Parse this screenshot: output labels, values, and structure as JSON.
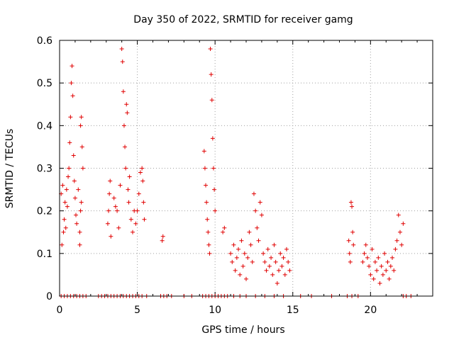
{
  "chart_data": {
    "type": "scatter",
    "title": "Day 350 of 2022, SRMTID for receiver gamg",
    "xlabel": "GPS time / hours",
    "ylabel": "SRMTID / TECUs",
    "xlim": [
      0,
      24
    ],
    "ylim": [
      0,
      0.6
    ],
    "x_ticks": [
      0,
      5,
      10,
      15,
      20
    ],
    "y_ticks": [
      0,
      0.1,
      0.2,
      0.3,
      0.4,
      0.5,
      0.6
    ],
    "x_tick_labels": [
      "0",
      "5",
      "10",
      "15",
      "20"
    ],
    "y_tick_labels": [
      "0",
      "0.1",
      "0.2",
      "0.3",
      "0.4",
      "0.5",
      "0.6"
    ],
    "grid": true,
    "marker": "+",
    "color": "#e00000",
    "series": [
      {
        "name": "SRMTID",
        "x": [
          0.1,
          0.15,
          0.2,
          0.25,
          0.3,
          0.35,
          0.4,
          0.45,
          0.5,
          0.55,
          0.6,
          0.65,
          0.7,
          0.75,
          0.8,
          0.85,
          0.9,
          0.95,
          1.0,
          1.05,
          1.1,
          1.2,
          1.3,
          1.35,
          1.4,
          1.45,
          1.5,
          1.3,
          1.35,
          1.4,
          3.1,
          3.15,
          3.2,
          3.25,
          3.3,
          3.5,
          3.6,
          3.7,
          3.8,
          3.9,
          4.0,
          4.05,
          4.1,
          4.15,
          4.2,
          4.25,
          4.3,
          4.35,
          4.4,
          4.45,
          4.5,
          4.6,
          4.7,
          4.8,
          4.9,
          5.0,
          5.1,
          5.2,
          5.3,
          5.35,
          5.4,
          5.45,
          6.6,
          6.65,
          9.3,
          9.35,
          9.4,
          9.45,
          9.5,
          9.55,
          9.6,
          9.65,
          9.7,
          9.75,
          9.8,
          9.85,
          9.9,
          9.95,
          10.0,
          10.5,
          10.6,
          11.0,
          11.1,
          11.2,
          11.3,
          11.4,
          11.5,
          11.6,
          11.7,
          11.8,
          11.9,
          12.0,
          12.1,
          12.2,
          12.3,
          12.4,
          12.5,
          12.6,
          12.7,
          12.8,
          12.9,
          13.0,
          13.1,
          13.2,
          13.3,
          13.4,
          13.5,
          13.6,
          13.7,
          13.8,
          13.9,
          14.0,
          14.1,
          14.2,
          14.3,
          14.4,
          14.5,
          14.6,
          14.7,
          14.8,
          18.6,
          18.65,
          18.7,
          18.75,
          18.8,
          18.85,
          18.9,
          19.5,
          19.6,
          19.7,
          19.8,
          19.9,
          20.0,
          20.1,
          20.2,
          20.3,
          20.4,
          20.5,
          20.6,
          20.7,
          20.8,
          20.9,
          21.0,
          21.1,
          21.2,
          21.3,
          21.4,
          21.5,
          21.6,
          21.7,
          21.8,
          21.9,
          22.0,
          22.1,
          0.1,
          0.3,
          0.5,
          0.7,
          0.9,
          1.1,
          1.3,
          1.5,
          1.7,
          2.5,
          2.7,
          2.9,
          3.1,
          3.3,
          3.5,
          3.7,
          3.9,
          4.1,
          4.3,
          4.5,
          4.7,
          4.9,
          5.1,
          5.3,
          5.6,
          6.5,
          6.7,
          6.9,
          7.2,
          8.0,
          8.5,
          9.2,
          9.4,
          9.6,
          9.8,
          10.0,
          10.2,
          10.4,
          10.6,
          10.8,
          11.2,
          11.6,
          12.0,
          12.6,
          13.2,
          13.8,
          14.4,
          15.5,
          16.2,
          17.5,
          18.5,
          18.8,
          19.2,
          22.1,
          22.3,
          22.6
        ],
        "y": [
          0.24,
          0.12,
          0.26,
          0.15,
          0.18,
          0.22,
          0.16,
          0.25,
          0.21,
          0.28,
          0.3,
          0.36,
          0.42,
          0.5,
          0.54,
          0.47,
          0.33,
          0.27,
          0.23,
          0.19,
          0.17,
          0.25,
          0.12,
          0.4,
          0.42,
          0.35,
          0.3,
          0.15,
          0.2,
          0.22,
          0.17,
          0.2,
          0.24,
          0.27,
          0.14,
          0.23,
          0.21,
          0.2,
          0.16,
          0.26,
          0.58,
          0.55,
          0.48,
          0.4,
          0.35,
          0.3,
          0.45,
          0.43,
          0.25,
          0.22,
          0.28,
          0.18,
          0.15,
          0.2,
          0.17,
          0.2,
          0.24,
          0.29,
          0.3,
          0.27,
          0.22,
          0.18,
          0.13,
          0.14,
          0.34,
          0.3,
          0.26,
          0.22,
          0.18,
          0.15,
          0.12,
          0.1,
          0.58,
          0.52,
          0.46,
          0.37,
          0.3,
          0.25,
          0.2,
          0.15,
          0.16,
          0.1,
          0.08,
          0.12,
          0.06,
          0.09,
          0.11,
          0.05,
          0.13,
          0.07,
          0.1,
          0.04,
          0.09,
          0.15,
          0.12,
          0.08,
          0.24,
          0.2,
          0.16,
          0.13,
          0.22,
          0.19,
          0.1,
          0.08,
          0.06,
          0.11,
          0.07,
          0.09,
          0.05,
          0.12,
          0.08,
          0.03,
          0.06,
          0.1,
          0.07,
          0.09,
          0.05,
          0.11,
          0.08,
          0.06,
          0.13,
          0.1,
          0.08,
          0.22,
          0.21,
          0.15,
          0.12,
          0.08,
          0.1,
          0.12,
          0.09,
          0.07,
          0.05,
          0.11,
          0.04,
          0.08,
          0.06,
          0.09,
          0.03,
          0.07,
          0.05,
          0.1,
          0.06,
          0.08,
          0.04,
          0.07,
          0.09,
          0.06,
          0.11,
          0.13,
          0.19,
          0.15,
          0.12,
          0.17,
          0,
          0,
          0,
          0,
          0,
          0,
          0,
          0,
          0,
          0,
          0,
          0,
          0,
          0,
          0,
          0,
          0,
          0,
          0,
          0,
          0,
          0,
          0,
          0,
          0,
          0,
          0,
          0,
          0,
          0,
          0,
          0,
          0,
          0,
          0,
          0,
          0,
          0,
          0,
          0,
          0,
          0,
          0,
          0,
          0,
          0,
          0,
          0,
          0,
          0,
          0,
          0,
          0,
          0,
          0,
          0
        ]
      }
    ]
  }
}
